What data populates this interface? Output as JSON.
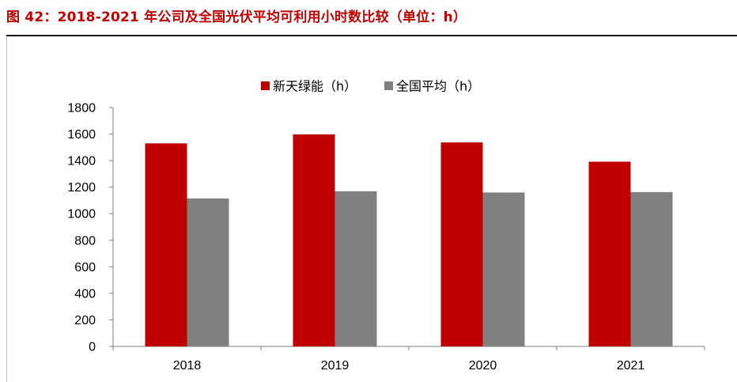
{
  "figure": {
    "title": "图 42：2018-2021 年公司及全国光伏平均可利用小时数比较（单位：h）"
  },
  "chart_data": {
    "type": "bar",
    "title": "",
    "xlabel": "",
    "ylabel": "",
    "categories": [
      "2018",
      "2019",
      "2020",
      "2021"
    ],
    "series": [
      {
        "name": "新天绿能（h）",
        "color": "#c00000",
        "values": [
          1530,
          1598,
          1537,
          1392
        ]
      },
      {
        "name": "全国平均（h）",
        "color": "#808080",
        "values": [
          1115,
          1169,
          1160,
          1163
        ]
      }
    ],
    "ylim": [
      0,
      1800
    ],
    "yticks": [
      0,
      200,
      400,
      600,
      800,
      1000,
      1200,
      1400,
      1600,
      1800
    ],
    "grid": false,
    "legend_position": "top-center"
  }
}
